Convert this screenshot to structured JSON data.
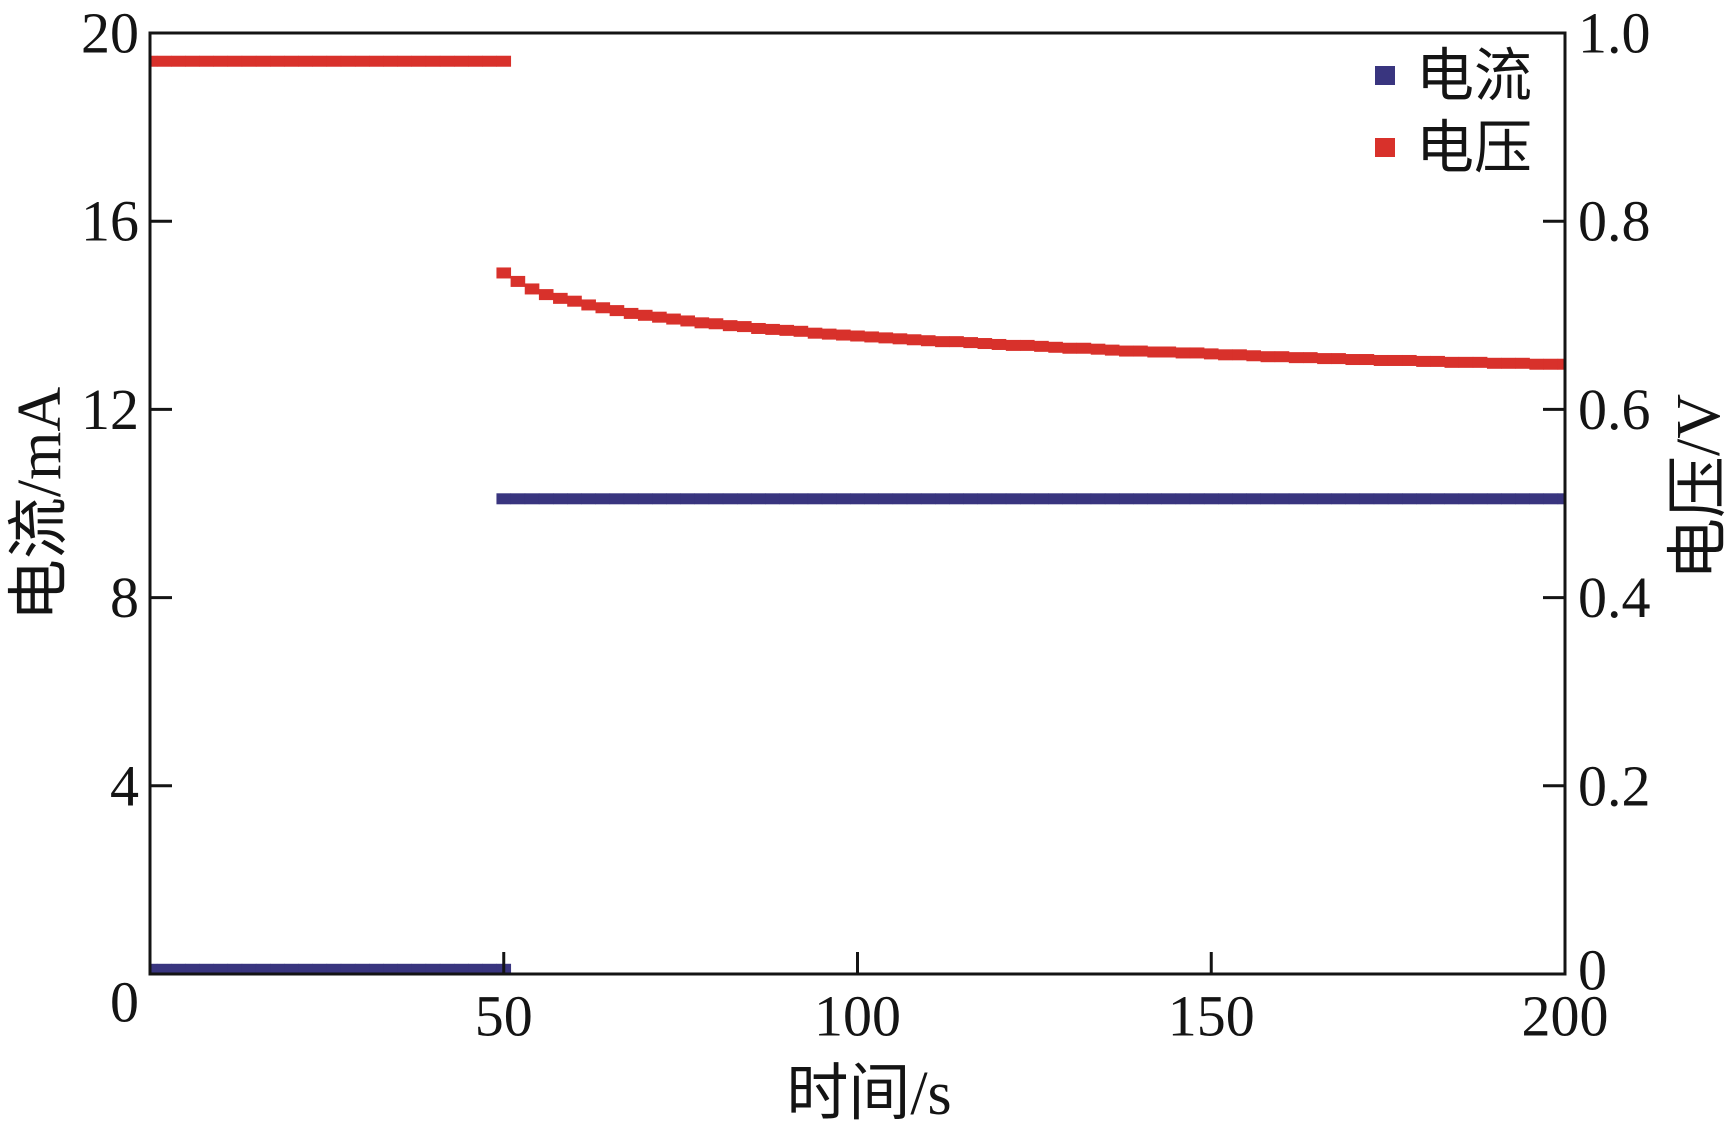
{
  "chart_data": {
    "type": "scatter",
    "xlabel": "时间/s",
    "ylabel": "电流/mA",
    "ylabel_right": "电压/V",
    "xlim": [
      0,
      200
    ],
    "ylim": [
      0,
      20
    ],
    "ylim_right": [
      0,
      1.0
    ],
    "x_ticks": [
      50,
      100,
      150,
      200
    ],
    "x_tick_labels": [
      "50",
      "100",
      "150",
      "200"
    ],
    "y_ticks": [
      0,
      4,
      8,
      12,
      16,
      20
    ],
    "y_tick_labels": [
      "0",
      "4",
      "8",
      "12",
      "16",
      "20"
    ],
    "y_right_ticks": [
      0,
      0.2,
      0.4,
      0.6,
      0.8,
      1.0
    ],
    "y_right_tick_labels": [
      "0",
      "0.2",
      "0.4",
      "0.6",
      "0.8",
      "1.0"
    ],
    "grid": false,
    "legend_position": "top-right",
    "series": [
      {
        "name": "电流",
        "axis": "left",
        "color": "#39357f",
        "segments": [
          {
            "x": [
              0,
              2,
              4,
              6,
              8,
              10,
              12,
              14,
              16,
              18,
              20,
              22,
              24,
              26,
              28,
              30,
              32,
              34,
              36,
              38,
              40,
              42,
              44,
              46,
              48,
              50
            ],
            "y": [
              0.1,
              0.1,
              0.1,
              0.1,
              0.1,
              0.1,
              0.1,
              0.1,
              0.1,
              0.1,
              0.1,
              0.1,
              0.1,
              0.1,
              0.1,
              0.1,
              0.1,
              0.1,
              0.1,
              0.1,
              0.1,
              0.1,
              0.1,
              0.1,
              0.1,
              0.1
            ]
          },
          {
            "x": [
              50,
              52,
              54,
              56,
              58,
              60,
              62,
              64,
              66,
              68,
              70,
              72,
              74,
              76,
              78,
              80,
              82,
              84,
              86,
              88,
              90,
              92,
              94,
              96,
              98,
              100,
              102,
              104,
              106,
              108,
              110,
              112,
              114,
              116,
              118,
              120,
              122,
              124,
              126,
              128,
              130,
              132,
              134,
              136,
              138,
              140,
              142,
              144,
              146,
              148,
              150,
              152,
              154,
              156,
              158,
              160,
              162,
              164,
              166,
              168,
              170,
              172,
              174,
              176,
              178,
              180,
              182,
              184,
              186,
              188,
              190,
              192,
              194,
              196,
              198,
              200
            ],
            "y": [
              10.1,
              10.1,
              10.1,
              10.1,
              10.1,
              10.1,
              10.1,
              10.1,
              10.1,
              10.1,
              10.1,
              10.1,
              10.1,
              10.1,
              10.1,
              10.1,
              10.1,
              10.1,
              10.1,
              10.1,
              10.1,
              10.1,
              10.1,
              10.1,
              10.1,
              10.1,
              10.1,
              10.1,
              10.1,
              10.1,
              10.1,
              10.1,
              10.1,
              10.1,
              10.1,
              10.1,
              10.1,
              10.1,
              10.1,
              10.1,
              10.1,
              10.1,
              10.1,
              10.1,
              10.1,
              10.1,
              10.1,
              10.1,
              10.1,
              10.1,
              10.1,
              10.1,
              10.1,
              10.1,
              10.1,
              10.1,
              10.1,
              10.1,
              10.1,
              10.1,
              10.1,
              10.1,
              10.1,
              10.1,
              10.1,
              10.1,
              10.1,
              10.1,
              10.1,
              10.1,
              10.1,
              10.1,
              10.1,
              10.1,
              10.1,
              10.1
            ]
          }
        ]
      },
      {
        "name": "电压",
        "axis": "right",
        "color": "#d8312b",
        "segments": [
          {
            "x": [
              0,
              2,
              4,
              6,
              8,
              10,
              12,
              14,
              16,
              18,
              20,
              22,
              24,
              26,
              28,
              30,
              32,
              34,
              36,
              38,
              40,
              42,
              44,
              46,
              48,
              50
            ],
            "y": [
              0.97,
              0.97,
              0.97,
              0.97,
              0.97,
              0.97,
              0.97,
              0.97,
              0.97,
              0.97,
              0.97,
              0.97,
              0.97,
              0.97,
              0.97,
              0.97,
              0.97,
              0.97,
              0.97,
              0.97,
              0.97,
              0.97,
              0.97,
              0.97,
              0.97,
              0.97
            ]
          },
          {
            "x": [
              50,
              52,
              54,
              56,
              58,
              60,
              62,
              64,
              66,
              68,
              70,
              72,
              74,
              76,
              78,
              80,
              82,
              84,
              86,
              88,
              90,
              92,
              94,
              96,
              98,
              100,
              102,
              104,
              106,
              108,
              110,
              112,
              114,
              116,
              118,
              120,
              122,
              124,
              126,
              128,
              130,
              132,
              134,
              136,
              138,
              140,
              142,
              144,
              146,
              148,
              150,
              152,
              154,
              156,
              158,
              160,
              162,
              164,
              166,
              168,
              170,
              172,
              174,
              176,
              178,
              180,
              182,
              184,
              186,
              188,
              190,
              192,
              194,
              196,
              198,
              200
            ],
            "y": [
              0.745,
              0.736,
              0.728,
              0.722,
              0.718,
              0.715,
              0.711,
              0.708,
              0.705,
              0.702,
              0.7,
              0.698,
              0.696,
              0.694,
              0.692,
              0.691,
              0.689,
              0.688,
              0.686,
              0.685,
              0.684,
              0.683,
              0.681,
              0.68,
              0.679,
              0.678,
              0.677,
              0.676,
              0.675,
              0.674,
              0.673,
              0.672,
              0.672,
              0.671,
              0.67,
              0.669,
              0.668,
              0.668,
              0.667,
              0.666,
              0.665,
              0.665,
              0.664,
              0.663,
              0.662,
              0.662,
              0.661,
              0.661,
              0.66,
              0.66,
              0.659,
              0.658,
              0.658,
              0.657,
              0.656,
              0.656,
              0.655,
              0.655,
              0.654,
              0.654,
              0.653,
              0.653,
              0.652,
              0.652,
              0.652,
              0.651,
              0.651,
              0.65,
              0.65,
              0.65,
              0.649,
              0.649,
              0.649,
              0.648,
              0.648,
              0.648
            ]
          }
        ]
      }
    ]
  }
}
